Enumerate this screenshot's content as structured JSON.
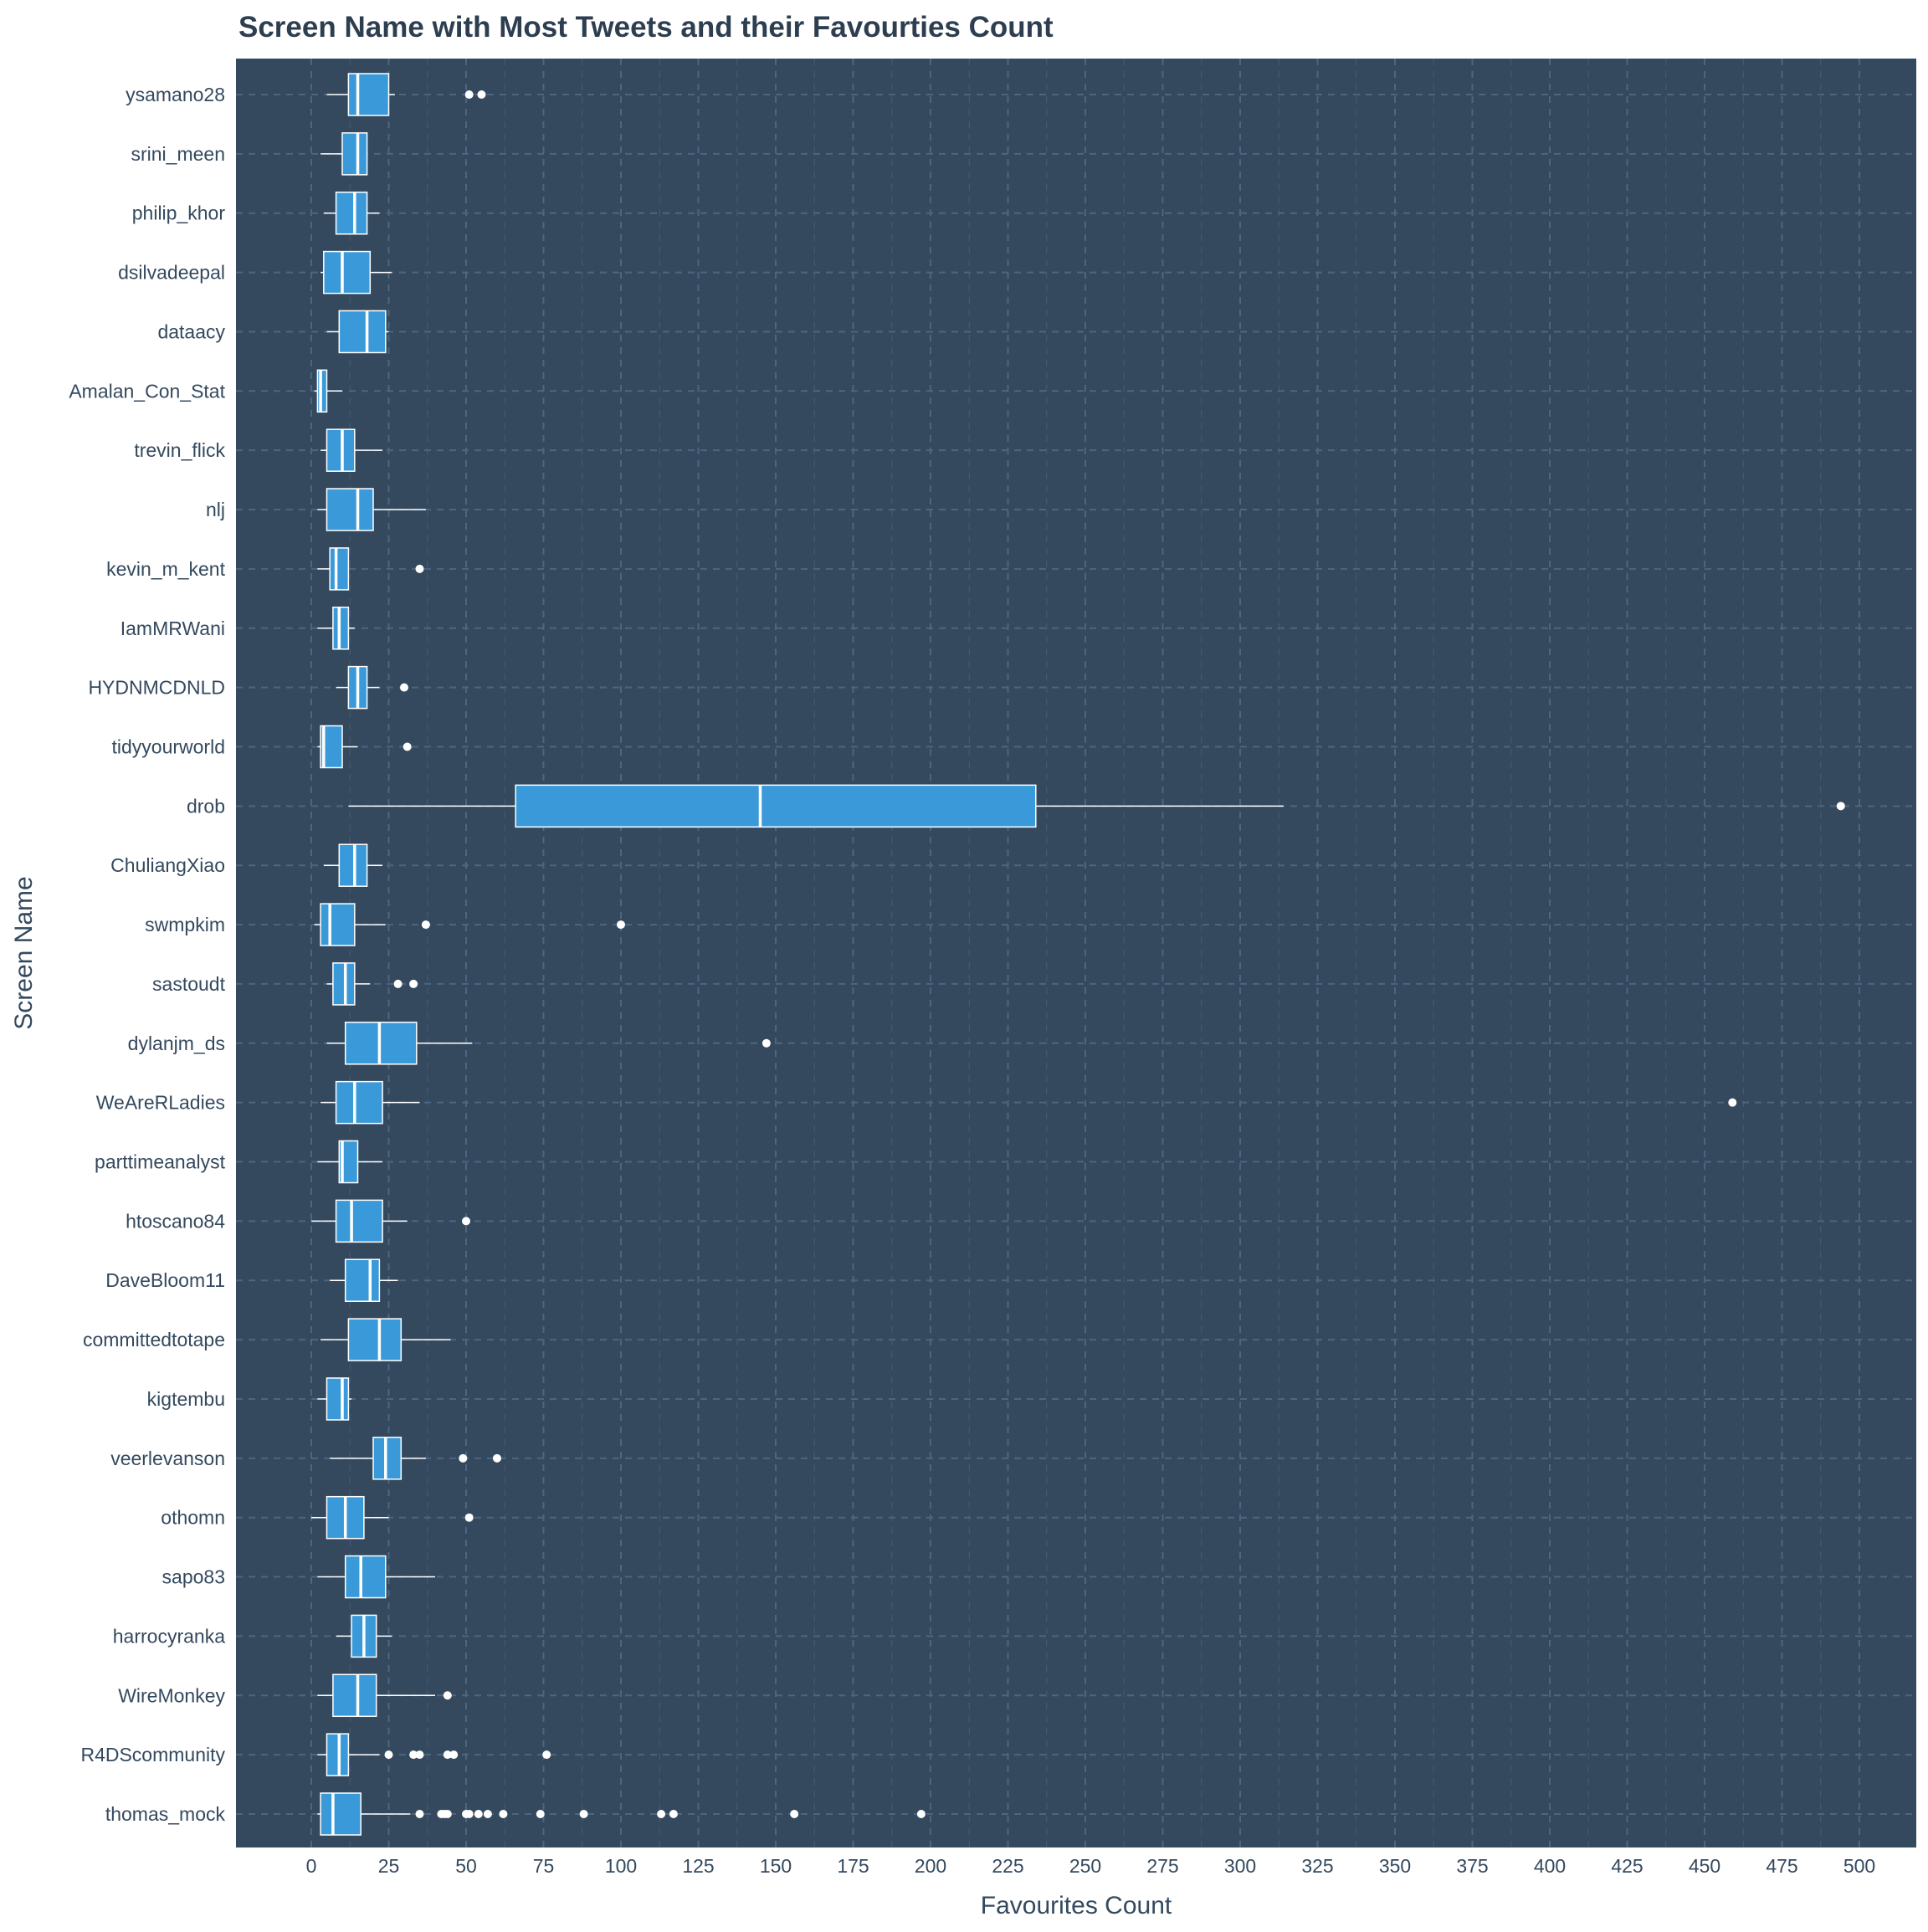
{
  "chart_data": {
    "type": "box",
    "title": "Screen Name with Most Tweets and their Favourties Count",
    "xlabel": "Favourites Count",
    "ylabel": "Screen Name",
    "xlim": [
      -25,
      515
    ],
    "xticks": [
      0,
      25,
      50,
      75,
      100,
      125,
      150,
      175,
      200,
      225,
      250,
      275,
      300,
      325,
      350,
      375,
      400,
      425,
      450,
      475,
      500
    ],
    "grid": true,
    "orientation": "horizontal",
    "colors": {
      "background": "#34495e",
      "box_fill": "#3a9ad9",
      "box_line": "#ffffff",
      "grid": "#4e6580",
      "text": "#34495e"
    },
    "boxes": [
      {
        "name": "ysamano28",
        "whisker_low": 5,
        "q1": 12,
        "median": 15,
        "q3": 25,
        "whisker_high": 27,
        "outliers": [
          51,
          55
        ]
      },
      {
        "name": "srini_meen",
        "whisker_low": 3,
        "q1": 10,
        "median": 15,
        "q3": 18,
        "whisker_high": 18,
        "outliers": []
      },
      {
        "name": "philip_khor",
        "whisker_low": 4,
        "q1": 8,
        "median": 14,
        "q3": 18,
        "whisker_high": 22,
        "outliers": []
      },
      {
        "name": "dsilvadeepal",
        "whisker_low": 3,
        "q1": 4,
        "median": 10,
        "q3": 19,
        "whisker_high": 26,
        "outliers": []
      },
      {
        "name": "dataacy",
        "whisker_low": 5,
        "q1": 9,
        "median": 18,
        "q3": 24,
        "whisker_high": 25,
        "outliers": []
      },
      {
        "name": "Amalan_Con_Stat",
        "whisker_low": 1,
        "q1": 2,
        "median": 3,
        "q3": 5,
        "whisker_high": 10,
        "outliers": []
      },
      {
        "name": "trevin_flick",
        "whisker_low": 3,
        "q1": 5,
        "median": 10,
        "q3": 14,
        "whisker_high": 23,
        "outliers": []
      },
      {
        "name": "nlj",
        "whisker_low": 2,
        "q1": 5,
        "median": 15,
        "q3": 20,
        "whisker_high": 37,
        "outliers": []
      },
      {
        "name": "kevin_m_kent",
        "whisker_low": 2,
        "q1": 6,
        "median": 8,
        "q3": 12,
        "whisker_high": 12,
        "outliers": [
          35
        ]
      },
      {
        "name": "IamMRWani",
        "whisker_low": 2,
        "q1": 7,
        "median": 9,
        "q3": 12,
        "whisker_high": 14,
        "outliers": []
      },
      {
        "name": "HYDNMCDNLD",
        "whisker_low": 8,
        "q1": 12,
        "median": 15,
        "q3": 18,
        "whisker_high": 22,
        "outliers": [
          30
        ]
      },
      {
        "name": "tidyyourworld",
        "whisker_low": 2,
        "q1": 3,
        "median": 4,
        "q3": 10,
        "whisker_high": 15,
        "outliers": [
          31
        ]
      },
      {
        "name": "drob",
        "whisker_low": 12,
        "q1": 66,
        "median": 145,
        "q3": 234,
        "whisker_high": 314,
        "outliers": [
          494
        ]
      },
      {
        "name": "ChuliangXiao",
        "whisker_low": 4,
        "q1": 9,
        "median": 14,
        "q3": 18,
        "whisker_high": 23,
        "outliers": []
      },
      {
        "name": "swmpkim",
        "whisker_low": 1,
        "q1": 3,
        "median": 6,
        "q3": 14,
        "whisker_high": 24,
        "outliers": [
          37,
          100
        ]
      },
      {
        "name": "sastoudt",
        "whisker_low": 5,
        "q1": 7,
        "median": 11,
        "q3": 14,
        "whisker_high": 19,
        "outliers": [
          28,
          33
        ]
      },
      {
        "name": "dylanjm_ds",
        "whisker_low": 5,
        "q1": 11,
        "median": 22,
        "q3": 34,
        "whisker_high": 52,
        "outliers": [
          147
        ]
      },
      {
        "name": "WeAreRLadies",
        "whisker_low": 3,
        "q1": 8,
        "median": 14,
        "q3": 23,
        "whisker_high": 35,
        "outliers": [
          459
        ]
      },
      {
        "name": "parttimeanalyst",
        "whisker_low": 2,
        "q1": 9,
        "median": 10,
        "q3": 15,
        "whisker_high": 23,
        "outliers": []
      },
      {
        "name": "htoscano84",
        "whisker_low": 0,
        "q1": 8,
        "median": 13,
        "q3": 23,
        "whisker_high": 31,
        "outliers": [
          50
        ]
      },
      {
        "name": "DaveBloom11",
        "whisker_low": 6,
        "q1": 11,
        "median": 19,
        "q3": 22,
        "whisker_high": 28,
        "outliers": []
      },
      {
        "name": "committedtotape",
        "whisker_low": 3,
        "q1": 12,
        "median": 22,
        "q3": 29,
        "whisker_high": 45,
        "outliers": []
      },
      {
        "name": "kigtembu",
        "whisker_low": 2,
        "q1": 5,
        "median": 10,
        "q3": 12,
        "whisker_high": 13,
        "outliers": []
      },
      {
        "name": "veerlevanson",
        "whisker_low": 6,
        "q1": 20,
        "median": 24,
        "q3": 29,
        "whisker_high": 37,
        "outliers": [
          49,
          60
        ]
      },
      {
        "name": "othomn",
        "whisker_low": 0,
        "q1": 5,
        "median": 11,
        "q3": 17,
        "whisker_high": 25,
        "outliers": [
          51
        ]
      },
      {
        "name": "sapo83",
        "whisker_low": 2,
        "q1": 11,
        "median": 16,
        "q3": 24,
        "whisker_high": 40,
        "outliers": []
      },
      {
        "name": "harrocyranka",
        "whisker_low": 8,
        "q1": 13,
        "median": 17,
        "q3": 21,
        "whisker_high": 26,
        "outliers": []
      },
      {
        "name": "WireMonkey",
        "whisker_low": 2,
        "q1": 7,
        "median": 15,
        "q3": 21,
        "whisker_high": 40,
        "outliers": [
          44
        ]
      },
      {
        "name": "R4DScommunity",
        "whisker_low": 2,
        "q1": 5,
        "median": 9,
        "q3": 12,
        "whisker_high": 22,
        "outliers": [
          25,
          33,
          35,
          44,
          46,
          76
        ]
      },
      {
        "name": "thomas_mock",
        "whisker_low": 2,
        "q1": 3,
        "median": 7,
        "q3": 16,
        "whisker_high": 32,
        "outliers": [
          35,
          42,
          43,
          44,
          50,
          51,
          54,
          57,
          62,
          74,
          88,
          113,
          117,
          156,
          197
        ]
      }
    ]
  }
}
